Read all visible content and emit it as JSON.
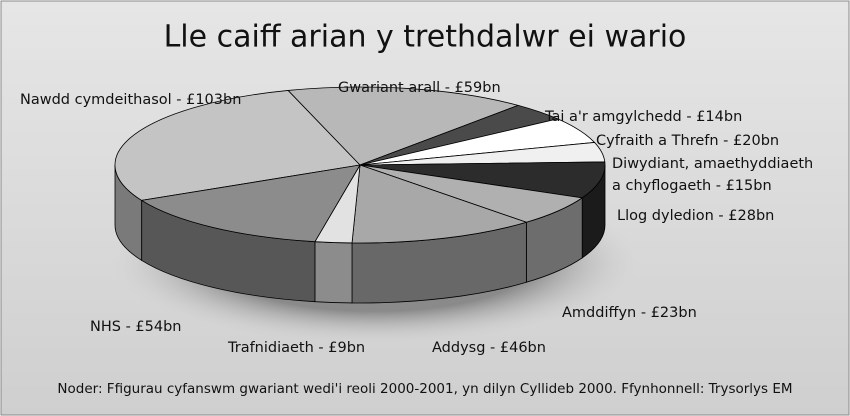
{
  "chart_data": {
    "type": "pie",
    "title": "Lle caiff arian y trethdalwr ei wario",
    "categories": [
      "Nawdd cymdeithasol - £103bn",
      "Gwariant arall - £59bn",
      "Tai a'r amgylchedd - £14bn",
      "Cyfraith a Threfn - £20bn",
      "Diwydiant, amaethyddiaeth a chyflogaeth - £15bn",
      "Llog dyledion - £28bn",
      "Amddiffyn - £23bn",
      "Addysg - £46bn",
      "Trafnidiaeth - £9bn",
      "NHS - £54bn"
    ],
    "values": [
      103,
      59,
      14,
      20,
      15,
      28,
      23,
      46,
      9,
      54
    ],
    "colors": [
      "#c4c4c4",
      "#b8b8b8",
      "#4a4a4a",
      "#ffffff",
      "#f0f0f0",
      "#2c2c2c",
      "#b0b0b0",
      "#a8a8a8",
      "#e2e2e2",
      "#8c8c8c"
    ],
    "note": "Noder: Ffigurau cyfanswm gwariant wedi'i reoli 2000-2001, yn dilyn Cyllideb 2000. Ffynhonnell: Trysorlys EM"
  }
}
